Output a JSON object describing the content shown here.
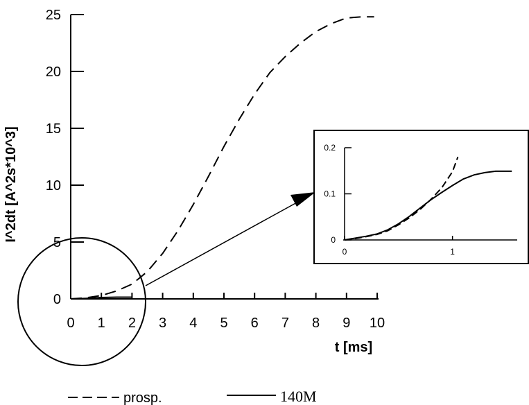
{
  "chart_data": [
    {
      "type": "line",
      "xlabel": "t [ms]",
      "ylabel": "I^2dt [A^2s*10^3]",
      "xlim": [
        0,
        10
      ],
      "ylim": [
        0,
        25
      ],
      "x_ticks": [
        "0",
        "1",
        "2",
        "3",
        "4",
        "5",
        "6",
        "7",
        "8",
        "9",
        "10"
      ],
      "y_ticks": [
        "0",
        "5",
        "10",
        "15",
        "20",
        "25"
      ],
      "grid": false,
      "legend_position": "bottom",
      "series": [
        {
          "name": "prosp.",
          "style": "dashed",
          "x": [
            0,
            0.5,
            1.0,
            1.5,
            2.0,
            2.5,
            3.0,
            3.5,
            4.0,
            4.5,
            5.0,
            5.5,
            6.0,
            6.5,
            7.0,
            7.5,
            8.0,
            8.5,
            9.0,
            9.5,
            9.9
          ],
          "y": [
            0,
            0.1,
            0.3,
            0.7,
            1.3,
            2.4,
            4.0,
            6.0,
            8.3,
            10.8,
            13.4,
            15.8,
            18.0,
            19.9,
            21.3,
            22.5,
            23.5,
            24.2,
            24.7,
            24.8,
            24.8
          ]
        },
        {
          "name": "140M",
          "style": "solid",
          "x": [
            0,
            0.5,
            1.0,
            1.5,
            2.0
          ],
          "y": [
            0,
            0.05,
            0.12,
            0.15,
            0.15
          ]
        }
      ]
    },
    {
      "type": "line",
      "xlim": [
        0,
        1.6
      ],
      "ylim": [
        0,
        0.2
      ],
      "x_ticks": [
        "0",
        "1"
      ],
      "y_ticks": [
        "0",
        "0.1",
        "0.2"
      ],
      "series": [
        {
          "name": "prosp.",
          "style": "dashed",
          "x": [
            0,
            0.1,
            0.2,
            0.3,
            0.4,
            0.5,
            0.6,
            0.7,
            0.8,
            0.9,
            1.0,
            1.05
          ],
          "y": [
            0,
            0.003,
            0.007,
            0.012,
            0.02,
            0.033,
            0.048,
            0.066,
            0.088,
            0.113,
            0.148,
            0.18
          ]
        },
        {
          "name": "140M",
          "style": "solid",
          "x": [
            0,
            0.1,
            0.2,
            0.3,
            0.4,
            0.5,
            0.6,
            0.7,
            0.8,
            0.9,
            1.0,
            1.1,
            1.2,
            1.3,
            1.4,
            1.5,
            1.55
          ],
          "y": [
            0,
            0.004,
            0.008,
            0.013,
            0.022,
            0.035,
            0.051,
            0.069,
            0.087,
            0.103,
            0.118,
            0.132,
            0.141,
            0.146,
            0.149,
            0.149,
            0.149
          ]
        }
      ]
    }
  ]
}
